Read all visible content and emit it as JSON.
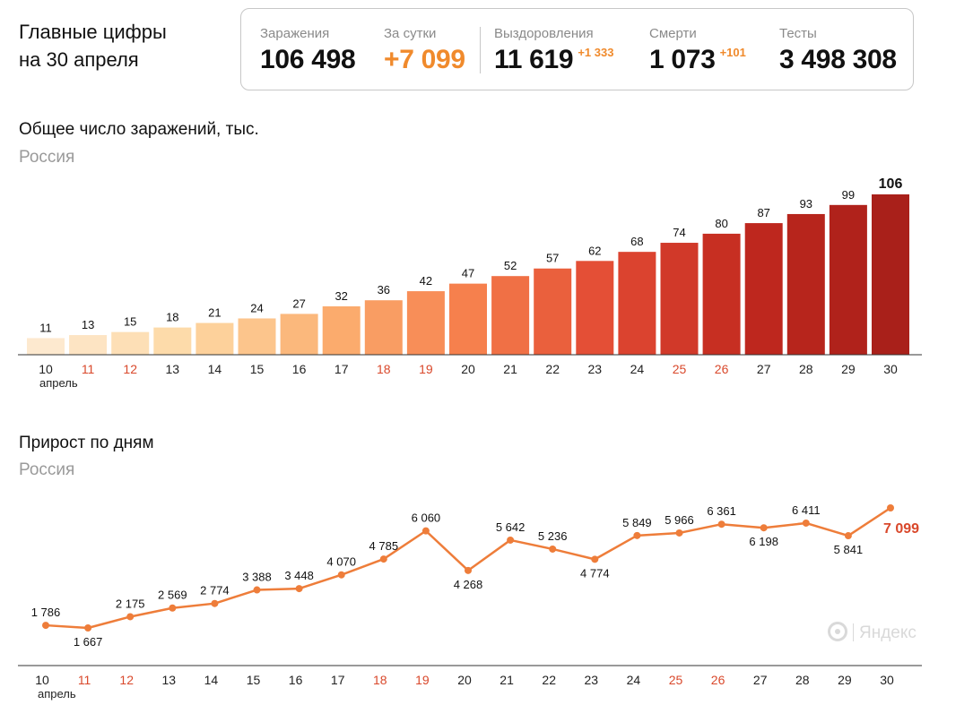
{
  "header": {
    "line1": "Главные цифры",
    "line2": "на 30 апреля"
  },
  "stats": [
    {
      "label": "Заражения",
      "value": "106 498",
      "delta": ""
    },
    {
      "label": "За сутки",
      "value": "+7 099",
      "delta": ""
    },
    {
      "label": "Выздоровления",
      "value": "11 619",
      "delta": "+1 333"
    },
    {
      "label": "Смерти",
      "value": "1 073",
      "delta": "+101"
    },
    {
      "label": "Тесты",
      "value": "3 498 308",
      "delta": ""
    }
  ],
  "colors": {
    "accent_orange": "#f08a2c",
    "weekend_red": "#d9482b",
    "line": "#ee7d3a",
    "bar_gradient": [
      "#fde9cf",
      "#fdd9a6",
      "#fbb071",
      "#f6804d",
      "#e24a33",
      "#c0281e",
      "#a9201a"
    ]
  },
  "chart_data": [
    {
      "type": "bar",
      "title": "Общее число заражений, тыс.",
      "subtitle": "Россия",
      "categories": [
        "10",
        "11",
        "12",
        "13",
        "14",
        "15",
        "16",
        "17",
        "18",
        "19",
        "20",
        "21",
        "22",
        "23",
        "24",
        "25",
        "26",
        "27",
        "28",
        "29",
        "30"
      ],
      "values": [
        11,
        13,
        15,
        18,
        21,
        24,
        27,
        32,
        36,
        42,
        47,
        52,
        57,
        62,
        68,
        74,
        80,
        87,
        93,
        99,
        106
      ],
      "value_labels": [
        "11",
        "13",
        "15",
        "18",
        "21",
        "24",
        "27",
        "32",
        "36",
        "42",
        "47",
        "52",
        "57",
        "62",
        "68",
        "74",
        "80",
        "87",
        "93",
        "99",
        "106"
      ],
      "x_month_label": "апрель",
      "weekend_days": [
        "11",
        "12",
        "18",
        "19",
        "25",
        "26"
      ],
      "highlight_last": true,
      "ylim": [
        0,
        106
      ]
    },
    {
      "type": "line",
      "title": "Прирост по дням",
      "subtitle": "Россия",
      "categories": [
        "10",
        "11",
        "12",
        "13",
        "14",
        "15",
        "16",
        "17",
        "18",
        "19",
        "20",
        "21",
        "22",
        "23",
        "24",
        "25",
        "26",
        "27",
        "28",
        "29",
        "30"
      ],
      "values": [
        1786,
        1667,
        2175,
        2569,
        2774,
        3388,
        3448,
        4070,
        4785,
        6060,
        4268,
        5642,
        5236,
        4774,
        5849,
        5966,
        6361,
        6198,
        6411,
        5841,
        7099
      ],
      "value_labels": [
        "1 786",
        "1 667",
        "2 175",
        "2 569",
        "2 774",
        "3 388",
        "3 448",
        "4 070",
        "4 785",
        "6 060",
        "4 268",
        "5 642",
        "5 236",
        "4 774",
        "5 849",
        "5 966",
        "6 361",
        "6 198",
        "6 411",
        "5 841",
        "7 099"
      ],
      "x_month_label": "апрель",
      "weekend_days": [
        "11",
        "12",
        "18",
        "19",
        "25",
        "26"
      ],
      "highlight_last": true
    }
  ],
  "watermark": "Яндекс"
}
